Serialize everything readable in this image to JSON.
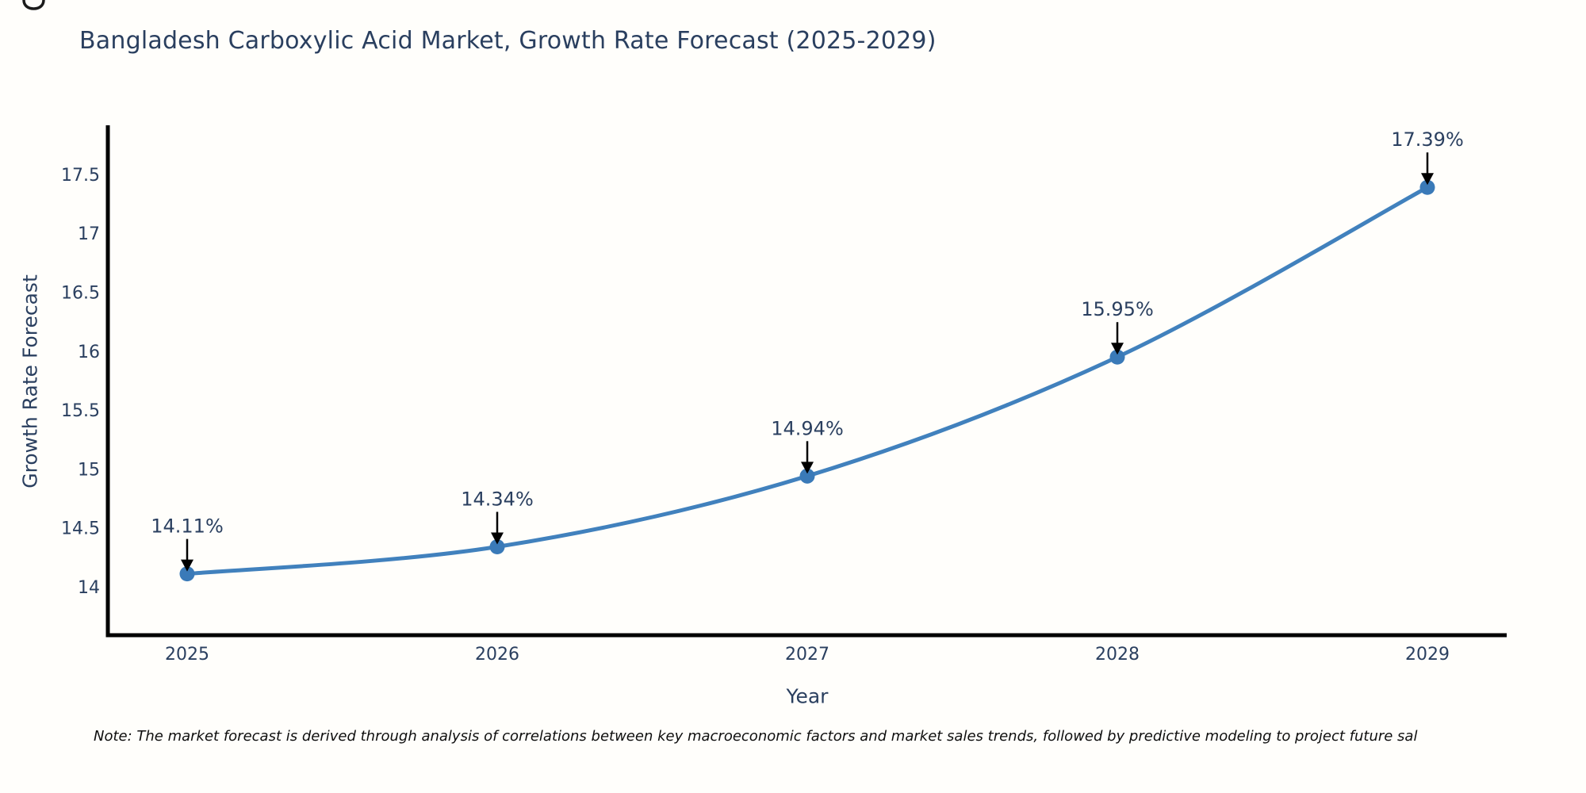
{
  "chart_data": {
    "type": "line",
    "title": "Bangladesh Carboxylic Acid Market, Growth Rate Forecast (2025-2029)",
    "xlabel": "Year",
    "ylabel": "Growth Rate Forecast",
    "x": [
      2025,
      2026,
      2027,
      2028,
      2029
    ],
    "series": [
      {
        "name": "Growth Rate Forecast",
        "values": [
          14.11,
          14.34,
          14.94,
          15.95,
          17.39
        ]
      }
    ],
    "point_labels": [
      "14.11%",
      "14.34%",
      "14.94%",
      "15.95%",
      "17.39%"
    ],
    "yticks": [
      14,
      14.5,
      15,
      15.5,
      16,
      16.5,
      17,
      17.5
    ],
    "ylim": [
      13.57,
      17.92
    ],
    "grid": false,
    "legend_position": "none",
    "line_shape": "spline",
    "annotation_arrows": true,
    "note": "Note: The market forecast is derived through analysis of correlations between key macroeconomic factors and market sales trends, followed by predictive modeling to project future sal",
    "colors": {
      "line": "#4181bd",
      "marker": "#3a7ab8",
      "axis_line": "#000000",
      "axis_text": "#2a3f5f",
      "annotation_text": "#2a3f5f",
      "arrow": "#000000",
      "background": "#fffefb"
    }
  }
}
